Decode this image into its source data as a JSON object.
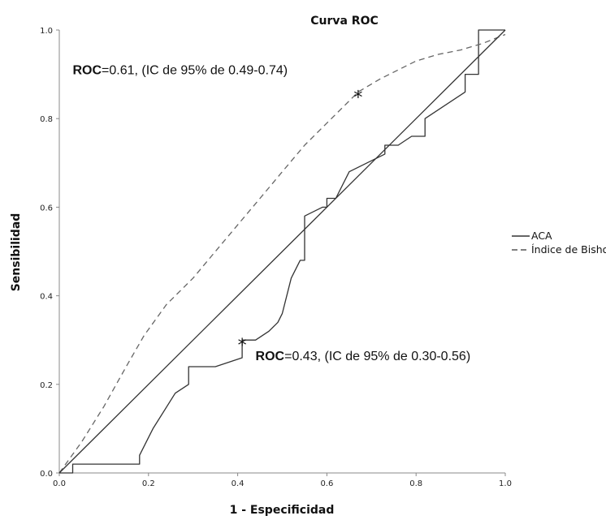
{
  "chart_data": {
    "type": "line",
    "title": "Curva ROC",
    "xlabel": "1 - Especificidad",
    "ylabel": "Sensibilidad",
    "xlim": [
      0,
      1
    ],
    "ylim": [
      0,
      1
    ],
    "x_ticks": [
      "0.0",
      "0.2",
      "0.4",
      "0.6",
      "0.8",
      "1.0"
    ],
    "y_ticks": [
      "0.0",
      "0.2",
      "0.4",
      "0.6",
      "0.8",
      "1.0"
    ],
    "grid": false,
    "legend_position": "right",
    "legend": [
      {
        "label": "ACA",
        "style": "solid"
      },
      {
        "label": "Índice de Bishop",
        "style": "dashed"
      }
    ],
    "series": [
      {
        "name": "ACA",
        "style": "solid",
        "color": "#333333",
        "points": [
          [
            0,
            0
          ],
          [
            0.03,
            0
          ],
          [
            0.03,
            0.02
          ],
          [
            0.18,
            0.02
          ],
          [
            0.18,
            0.04
          ],
          [
            0.2,
            0.08
          ],
          [
            0.21,
            0.1
          ],
          [
            0.26,
            0.18
          ],
          [
            0.29,
            0.2
          ],
          [
            0.29,
            0.24
          ],
          [
            0.35,
            0.24
          ],
          [
            0.41,
            0.26
          ],
          [
            0.41,
            0.3
          ],
          [
            0.44,
            0.3
          ],
          [
            0.47,
            0.32
          ],
          [
            0.49,
            0.34
          ],
          [
            0.5,
            0.36
          ],
          [
            0.52,
            0.44
          ],
          [
            0.54,
            0.48
          ],
          [
            0.55,
            0.48
          ],
          [
            0.55,
            0.58
          ],
          [
            0.59,
            0.6
          ],
          [
            0.6,
            0.6
          ],
          [
            0.6,
            0.62
          ],
          [
            0.62,
            0.62
          ],
          [
            0.65,
            0.68
          ],
          [
            0.73,
            0.72
          ],
          [
            0.73,
            0.74
          ],
          [
            0.76,
            0.74
          ],
          [
            0.79,
            0.76
          ],
          [
            0.82,
            0.76
          ],
          [
            0.82,
            0.8
          ],
          [
            0.91,
            0.86
          ],
          [
            0.91,
            0.9
          ],
          [
            0.94,
            0.9
          ],
          [
            0.94,
            1.0
          ],
          [
            1.0,
            1.0
          ]
        ]
      },
      {
        "name": "Índice de Bishop",
        "style": "dashed",
        "color": "#666666",
        "points": [
          [
            0,
            0
          ],
          [
            0.05,
            0.07
          ],
          [
            0.1,
            0.15
          ],
          [
            0.15,
            0.24
          ],
          [
            0.19,
            0.31
          ],
          [
            0.24,
            0.38
          ],
          [
            0.3,
            0.44
          ],
          [
            0.35,
            0.5
          ],
          [
            0.4,
            0.56
          ],
          [
            0.45,
            0.62
          ],
          [
            0.5,
            0.68
          ],
          [
            0.55,
            0.74
          ],
          [
            0.6,
            0.79
          ],
          [
            0.65,
            0.84
          ],
          [
            0.67,
            0.86
          ],
          [
            0.72,
            0.89
          ],
          [
            0.8,
            0.93
          ],
          [
            0.85,
            0.945
          ],
          [
            0.9,
            0.955
          ],
          [
            0.95,
            0.97
          ],
          [
            1.0,
            0.99
          ]
        ]
      },
      {
        "name": "",
        "style": "solid",
        "color": "#333333",
        "points": [
          [
            0,
            0
          ],
          [
            1,
            1
          ]
        ]
      }
    ],
    "markers": [
      {
        "x": 0.67,
        "y": 0.86,
        "symbol": "*"
      },
      {
        "x": 0.41,
        "y": 0.3,
        "symbol": "*"
      }
    ],
    "annotations": [
      {
        "bold": "ROC",
        "text": "=0.61, (IC de 95% de 0.49-0.74)",
        "x": 0.03,
        "y": 0.9
      },
      {
        "bold": "ROC",
        "text": "=0.43, (IC de 95% de 0.30-0.56)",
        "x": 0.44,
        "y": 0.255
      }
    ]
  }
}
